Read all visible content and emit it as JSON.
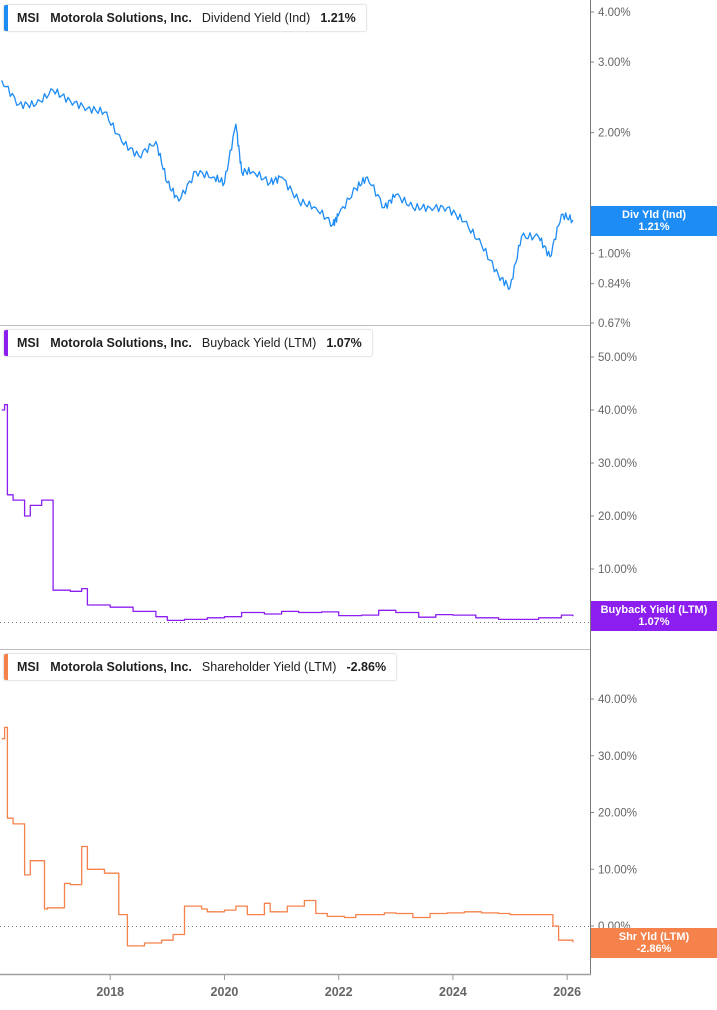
{
  "chart_data": [
    {
      "type": "line",
      "title": "MSI Motorola Solutions, Inc. Dividend Yield (Ind)",
      "ticker": "MSI",
      "company": "Motorola Solutions, Inc.",
      "metric": "Dividend Yield (Ind)",
      "current_value": "1.21%",
      "tag_label": "Div Yld (Ind)",
      "color": "#1e8cf5",
      "y_scale": "log",
      "y_ticks": [
        "4.00%",
        "3.00%",
        "2.00%",
        "1.00%",
        "0.84%",
        "0.67%"
      ],
      "ylim": [
        0.66,
        4.3
      ],
      "x": [
        2016.1,
        2016.4,
        2016.7,
        2017.0,
        2017.3,
        2017.6,
        2017.9,
        2018.2,
        2018.5,
        2018.8,
        2019.0,
        2019.2,
        2019.5,
        2019.8,
        2020.0,
        2020.2,
        2020.3,
        2020.5,
        2020.8,
        2021.0,
        2021.3,
        2021.6,
        2021.9,
        2022.0,
        2022.3,
        2022.5,
        2022.8,
        2023.0,
        2023.3,
        2023.6,
        2023.9,
        2024.2,
        2024.5,
        2024.8,
        2025.0,
        2025.2,
        2025.5,
        2025.7,
        2025.9,
        2026.1
      ],
      "values": [
        2.7,
        2.35,
        2.35,
        2.55,
        2.4,
        2.3,
        2.25,
        1.9,
        1.75,
        1.9,
        1.5,
        1.35,
        1.6,
        1.55,
        1.5,
        2.1,
        1.6,
        1.6,
        1.5,
        1.55,
        1.35,
        1.3,
        1.18,
        1.25,
        1.45,
        1.55,
        1.3,
        1.4,
        1.3,
        1.3,
        1.3,
        1.2,
        1.05,
        0.88,
        0.82,
        1.1,
        1.1,
        0.98,
        1.25,
        1.21
      ]
    },
    {
      "type": "line",
      "title": "MSI Motorola Solutions, Inc. Buyback Yield (LTM)",
      "ticker": "MSI",
      "company": "Motorola Solutions, Inc.",
      "metric": "Buyback Yield (LTM)",
      "current_value": "1.07%",
      "tag_label": "Buyback Yield (LTM)",
      "color": "#8c1ef0",
      "y_ticks": [
        "50.00%",
        "40.00%",
        "30.00%",
        "20.00%",
        "10.00%",
        "0.00%"
      ],
      "ylim": [
        -4,
        55
      ],
      "x": [
        2016.1,
        2016.15,
        2016.2,
        2016.3,
        2016.5,
        2016.6,
        2016.8,
        2016.9,
        2017.0,
        2017.3,
        2017.5,
        2017.6,
        2018.0,
        2018.4,
        2018.8,
        2019.0,
        2019.3,
        2019.7,
        2020.0,
        2020.3,
        2020.7,
        2021.0,
        2021.3,
        2021.7,
        2022.0,
        2022.4,
        2022.7,
        2023.0,
        2023.4,
        2023.7,
        2024.0,
        2024.4,
        2024.8,
        2025.0,
        2025.5,
        2025.9,
        2026.1
      ],
      "values": [
        40,
        41,
        24,
        23,
        20,
        22,
        23,
        23,
        6,
        5.8,
        6.3,
        3.2,
        2.8,
        2,
        1,
        0.3,
        0.5,
        0.8,
        1,
        1.8,
        1.5,
        2,
        1.8,
        1.9,
        1.2,
        1.3,
        2.2,
        1.8,
        0.9,
        1.4,
        1.3,
        0.8,
        0.5,
        0.5,
        0.8,
        1.3,
        1.07
      ]
    },
    {
      "type": "line",
      "title": "MSI Motorola Solutions, Inc. Shareholder Yield (LTM)",
      "ticker": "MSI",
      "company": "Motorola Solutions, Inc.",
      "metric": "Shareholder Yield (LTM)",
      "current_value": "-2.86%",
      "tag_label": "Shr Yld (LTM)",
      "color": "#f5824b",
      "y_ticks": [
        "40.00%",
        "30.00%",
        "20.00%",
        "10.00%",
        "0.00%"
      ],
      "ylim": [
        -5,
        49
      ],
      "x": [
        2016.1,
        2016.15,
        2016.2,
        2016.3,
        2016.5,
        2016.6,
        2016.85,
        2016.9,
        2017.2,
        2017.3,
        2017.5,
        2017.6,
        2017.9,
        2018.15,
        2018.3,
        2018.6,
        2018.9,
        2019.1,
        2019.3,
        2019.6,
        2019.7,
        2020.0,
        2020.2,
        2020.4,
        2020.7,
        2020.8,
        2021.1,
        2021.4,
        2021.6,
        2021.8,
        2022.1,
        2022.3,
        2022.5,
        2022.8,
        2023.0,
        2023.3,
        2023.6,
        2023.9,
        2024.2,
        2024.5,
        2024.8,
        2025.0,
        2025.3,
        2025.6,
        2025.75,
        2025.85,
        2026.1
      ],
      "values": [
        33,
        35,
        19,
        18,
        9,
        11.5,
        3,
        3.2,
        7.5,
        7.3,
        14,
        10,
        9.3,
        2,
        -3.5,
        -3,
        -2.5,
        -1.5,
        3.5,
        3,
        2.5,
        2.8,
        3.5,
        2,
        4,
        2.5,
        3.5,
        4.5,
        2.2,
        1.7,
        1.5,
        2,
        2,
        2.3,
        2.2,
        1.5,
        2.2,
        2.3,
        2.5,
        2.3,
        2.2,
        2,
        2,
        2,
        0,
        -2.5,
        -2.86
      ]
    }
  ],
  "x_axis": {
    "ticks": [
      "2018",
      "2020",
      "2022",
      "2024",
      "2026"
    ],
    "range": [
      2016.07,
      2026.4
    ]
  }
}
